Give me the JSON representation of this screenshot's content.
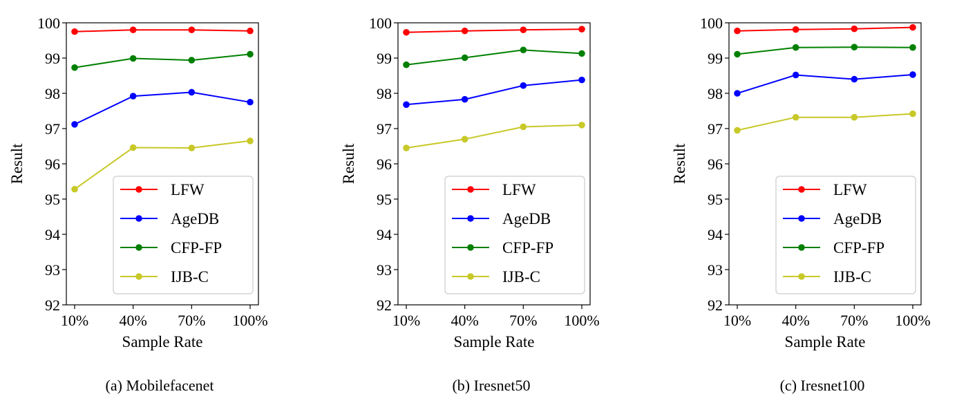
{
  "chart_data": [
    {
      "type": "line",
      "caption": "(a) Mobilefacenet",
      "xlabel": "Sample Rate",
      "ylabel": "Result",
      "categories": [
        "10%",
        "40%",
        "70%",
        "100%"
      ],
      "ylim": [
        92,
        100
      ],
      "yticks": [
        "92",
        "93",
        "94",
        "95",
        "96",
        "97",
        "98",
        "99",
        "100"
      ],
      "legend_position": "lower-right",
      "grid": false,
      "series": [
        {
          "name": "LFW",
          "color": "#ff0000",
          "values": [
            99.75,
            99.8,
            99.8,
            99.77
          ]
        },
        {
          "name": "AgeDB",
          "color": "#0000ff",
          "values": [
            97.12,
            97.92,
            98.03,
            97.75
          ]
        },
        {
          "name": "CFP-FP",
          "color": "#008000",
          "values": [
            98.73,
            98.99,
            98.94,
            99.11
          ]
        },
        {
          "name": "IJB-C",
          "color": "#c8c828",
          "values": [
            95.28,
            96.46,
            96.45,
            96.65
          ]
        }
      ]
    },
    {
      "type": "line",
      "caption": "(b) Iresnet50",
      "xlabel": "Sample Rate",
      "ylabel": "Result",
      "categories": [
        "10%",
        "40%",
        "70%",
        "100%"
      ],
      "ylim": [
        92,
        100
      ],
      "yticks": [
        "92",
        "93",
        "94",
        "95",
        "96",
        "97",
        "98",
        "99",
        "100"
      ],
      "legend_position": "lower-right",
      "grid": false,
      "series": [
        {
          "name": "LFW",
          "color": "#ff0000",
          "values": [
            99.73,
            99.77,
            99.8,
            99.82
          ]
        },
        {
          "name": "AgeDB",
          "color": "#0000ff",
          "values": [
            97.68,
            97.83,
            98.22,
            98.38
          ]
        },
        {
          "name": "CFP-FP",
          "color": "#008000",
          "values": [
            98.81,
            99.01,
            99.23,
            99.13
          ]
        },
        {
          "name": "IJB-C",
          "color": "#c8c828",
          "values": [
            96.45,
            96.7,
            97.05,
            97.1
          ]
        }
      ]
    },
    {
      "type": "line",
      "caption": "(c) Iresnet100",
      "xlabel": "Sample Rate",
      "ylabel": "Result",
      "categories": [
        "10%",
        "40%",
        "70%",
        "100%"
      ],
      "ylim": [
        92,
        100
      ],
      "yticks": [
        "92",
        "93",
        "94",
        "95",
        "96",
        "97",
        "98",
        "99",
        "100"
      ],
      "legend_position": "lower-right",
      "grid": false,
      "series": [
        {
          "name": "LFW",
          "color": "#ff0000",
          "values": [
            99.77,
            99.81,
            99.83,
            99.87
          ]
        },
        {
          "name": "AgeDB",
          "color": "#0000ff",
          "values": [
            98.0,
            98.52,
            98.4,
            98.53
          ]
        },
        {
          "name": "CFP-FP",
          "color": "#008000",
          "values": [
            99.11,
            99.3,
            99.31,
            99.3
          ]
        },
        {
          "name": "IJB-C",
          "color": "#c8c828",
          "values": [
            96.95,
            97.32,
            97.32,
            97.42
          ]
        }
      ]
    }
  ]
}
